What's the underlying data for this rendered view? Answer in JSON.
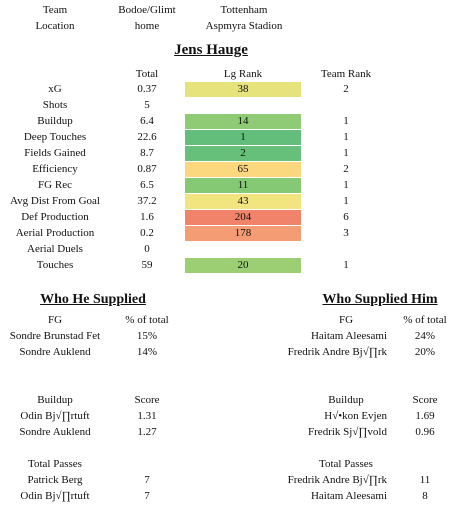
{
  "top_info": {
    "team_label": "Team",
    "location_label": "Location",
    "home_team": "Bodoe/Glimt",
    "home_location": "home",
    "away_team": "Tottenham",
    "away_location": "Aspmyra Stadion"
  },
  "player": {
    "name": "Jens Hauge"
  },
  "stats_table": {
    "headers": {
      "total": "Total",
      "lg_rank": "Lg Rank",
      "team_rank": "Team Rank"
    },
    "rows": [
      {
        "label": "xG",
        "total": "0.37",
        "lg_rank": "38",
        "team_rank": "2",
        "color": "#e6e37c"
      },
      {
        "label": "Shots",
        "total": "5",
        "lg_rank": "",
        "team_rank": "",
        "color": ""
      },
      {
        "label": "Buildup",
        "total": "6.4",
        "lg_rank": "14",
        "team_rank": "1",
        "color": "#8ecb74"
      },
      {
        "label": "Deep Touches",
        "total": "22.6",
        "lg_rank": "1",
        "team_rank": "1",
        "color": "#63be7b"
      },
      {
        "label": "Fields Gained",
        "total": "8.7",
        "lg_rank": "2",
        "team_rank": "1",
        "color": "#67c07a"
      },
      {
        "label": "Efficiency",
        "total": "0.87",
        "lg_rank": "65",
        "team_rank": "2",
        "color": "#fbd87d"
      },
      {
        "label": "FG Rec",
        "total": "6.5",
        "lg_rank": "11",
        "team_rank": "1",
        "color": "#86c975"
      },
      {
        "label": "Avg Dist From Goal",
        "total": "37.2",
        "lg_rank": "43",
        "team_rank": "1",
        "color": "#f2e47e"
      },
      {
        "label": "Def Production",
        "total": "1.6",
        "lg_rank": "204",
        "team_rank": "6",
        "color": "#f1836b"
      },
      {
        "label": "Aerial Production",
        "total": "0.2",
        "lg_rank": "178",
        "team_rank": "3",
        "color": "#f49d75"
      },
      {
        "label": "Aerial Duels",
        "total": "0",
        "lg_rank": "",
        "team_rank": "",
        "color": ""
      },
      {
        "label": "Touches",
        "total": "59",
        "lg_rank": "20",
        "team_rank": "1",
        "color": "#9ccf73"
      }
    ]
  },
  "supplied": {
    "title": "Who He Supplied",
    "fg_header": "FG",
    "pct_header": "% of total",
    "fg_rows": [
      {
        "name": "Sondre Brunstad Fet",
        "value": "15%"
      },
      {
        "name": "Sondre Auklend",
        "value": "14%"
      }
    ],
    "buildup_header": "Buildup",
    "score_header": "Score",
    "buildup_rows": [
      {
        "name": "Odin Bj√∏rtuft",
        "value": "1.31"
      },
      {
        "name": "Sondre Auklend",
        "value": "1.27"
      }
    ],
    "passes_header": "Total Passes",
    "passes_rows": [
      {
        "name": "Patrick Berg",
        "value": "7"
      },
      {
        "name": "Odin Bj√∏rtuft",
        "value": "7"
      }
    ]
  },
  "supplied_him": {
    "title": "Who Supplied Him",
    "fg_header": "FG",
    "pct_header": "% of total",
    "fg_rows": [
      {
        "name": "Haitam Aleesami",
        "value": "24%"
      },
      {
        "name": "Fredrik Andre Bj√∏rk",
        "value": "20%"
      }
    ],
    "buildup_header": "Buildup",
    "score_header": "Score",
    "buildup_rows": [
      {
        "name": "H√•kon Evjen",
        "value": "1.69"
      },
      {
        "name": "Fredrik Sj√∏vold",
        "value": "0.96"
      }
    ],
    "passes_header": "Total Passes",
    "passes_rows": [
      {
        "name": "Fredrik Andre Bj√∏rk",
        "value": "11"
      },
      {
        "name": "Haitam Aleesami",
        "value": "8"
      }
    ]
  }
}
